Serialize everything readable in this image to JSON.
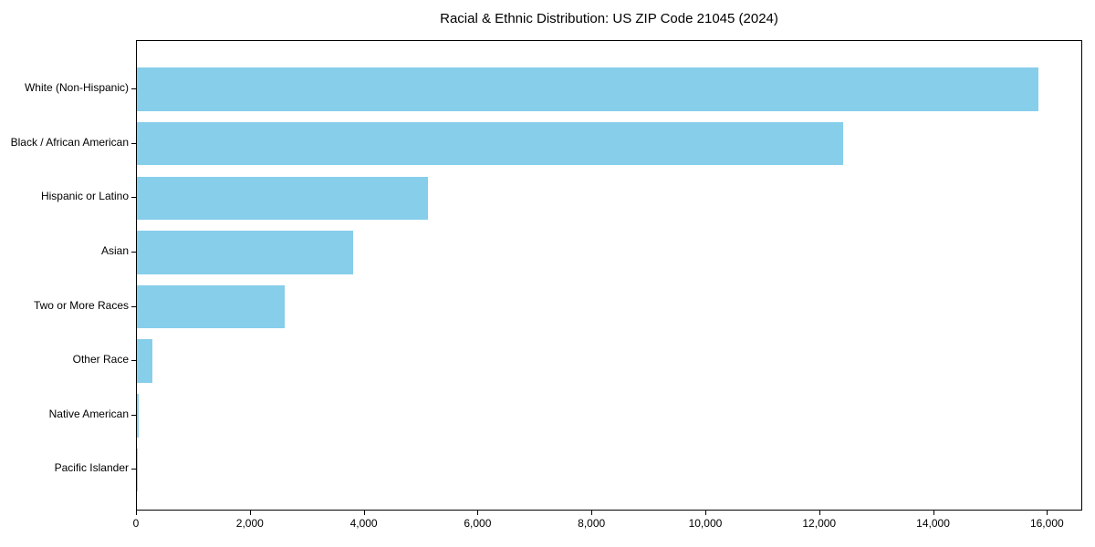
{
  "chart_data": {
    "type": "bar",
    "orientation": "horizontal",
    "title": "Racial & Ethnic Distribution: US ZIP Code 21045 (2024)",
    "categories": [
      "White (Non-Hispanic)",
      "Black / African American",
      "Hispanic or Latino",
      "Asian",
      "Two or More Races",
      "Other Race",
      "Native American",
      "Pacific Islander"
    ],
    "values": [
      15830,
      12410,
      5110,
      3800,
      2590,
      280,
      30,
      10
    ],
    "xlabel": "",
    "ylabel": "",
    "xlim": [
      0,
      16620
    ],
    "xticks": [
      0,
      2000,
      4000,
      6000,
      8000,
      10000,
      12000,
      14000,
      16000
    ],
    "xtick_labels": [
      "0",
      "2,000",
      "4,000",
      "6,000",
      "8,000",
      "10,000",
      "12,000",
      "14,000",
      "16,000"
    ],
    "bar_color": "#87CEEB",
    "grid": false,
    "legend": null
  }
}
